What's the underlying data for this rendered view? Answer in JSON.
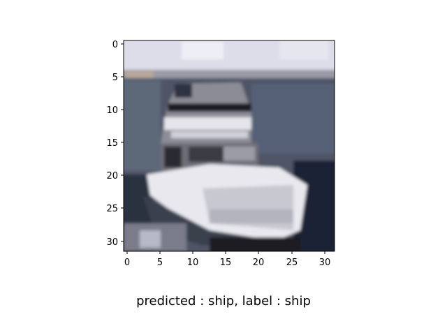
{
  "image": {
    "subject": "ship",
    "grid_size": [
      32,
      32
    ]
  },
  "axes": {
    "x_ticks": [
      "0",
      "5",
      "10",
      "15",
      "20",
      "25",
      "30"
    ],
    "y_ticks": [
      "0",
      "5",
      "10",
      "15",
      "20",
      "25",
      "30"
    ]
  },
  "caption": "predicted : ship, label : ship"
}
